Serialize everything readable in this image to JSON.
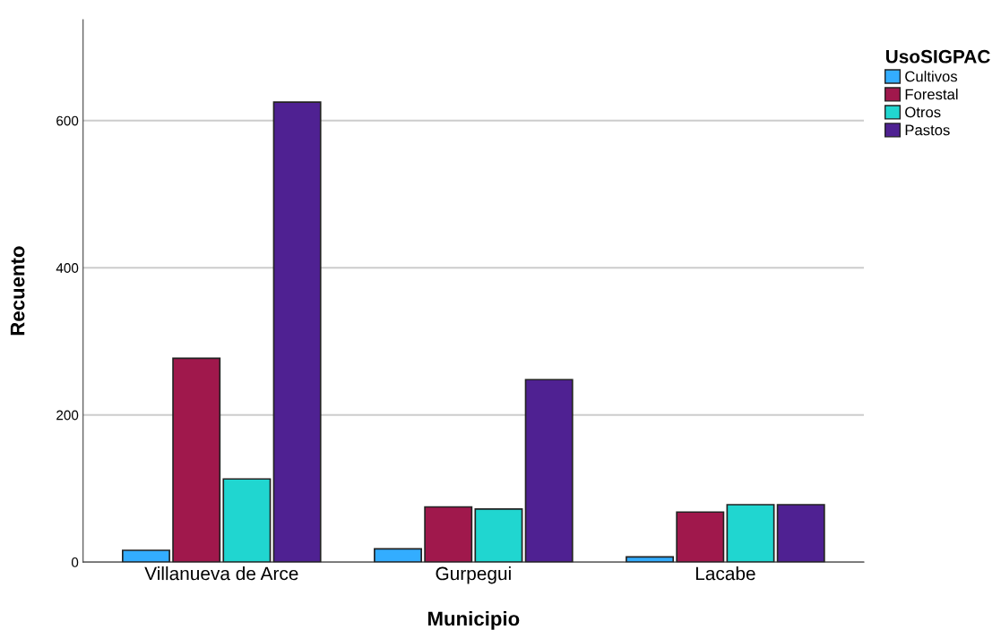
{
  "chart_data": {
    "type": "bar",
    "xlabel": "Municipio",
    "ylabel": "Recuento",
    "legend_title": "UsoSIGPAC",
    "categories": [
      "Villanueva de Arce",
      "Gurpegui",
      "Lacabe"
    ],
    "series": [
      {
        "name": "Cultivos",
        "color": "#33adff",
        "values": [
          16,
          18,
          7
        ]
      },
      {
        "name": "Forestal",
        "color": "#a0184c",
        "values": [
          277,
          75,
          68
        ]
      },
      {
        "name": "Otros",
        "color": "#20d6d0",
        "values": [
          113,
          72,
          78
        ]
      },
      {
        "name": "Pastos",
        "color": "#4f2192",
        "values": [
          625,
          248,
          78
        ]
      }
    ],
    "ylim": [
      0,
      737
    ],
    "yticks": [
      0,
      200,
      400,
      600
    ],
    "grid": "y",
    "legend": "top right"
  }
}
